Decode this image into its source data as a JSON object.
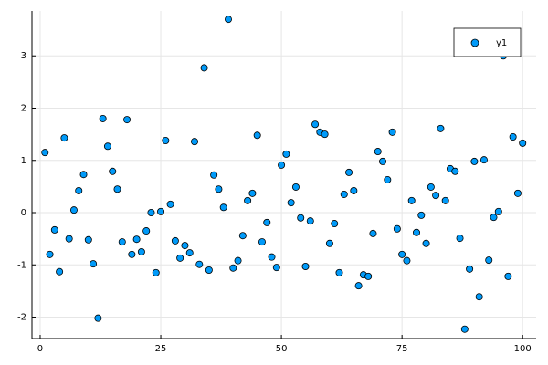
{
  "chart_data": {
    "type": "scatter",
    "x": [
      1,
      2,
      3,
      4,
      5,
      6,
      7,
      8,
      9,
      10,
      11,
      12,
      13,
      14,
      15,
      16,
      17,
      18,
      19,
      20,
      21,
      22,
      23,
      24,
      25,
      26,
      27,
      28,
      29,
      30,
      31,
      32,
      33,
      34,
      35,
      36,
      37,
      38,
      39,
      40,
      41,
      42,
      43,
      44,
      45,
      46,
      47,
      48,
      49,
      50,
      51,
      52,
      53,
      54,
      55,
      56,
      57,
      58,
      59,
      60,
      61,
      62,
      63,
      64,
      65,
      66,
      67,
      68,
      69,
      70,
      71,
      72,
      73,
      74,
      75,
      76,
      77,
      78,
      79,
      80,
      81,
      82,
      83,
      84,
      85,
      86,
      87,
      88,
      89,
      90,
      91,
      92,
      93,
      94,
      95,
      96,
      97,
      98,
      99,
      100
    ],
    "series": [
      {
        "name": "y1",
        "color": "#009af9",
        "values": [
          1.15,
          -0.8,
          -0.33,
          -1.13,
          1.43,
          -0.5,
          0.05,
          0.42,
          0.73,
          -0.52,
          -0.98,
          -2.02,
          1.8,
          1.27,
          0.79,
          0.45,
          -0.56,
          1.78,
          -0.8,
          -0.51,
          -0.75,
          -0.35,
          0.0,
          -1.15,
          0.02,
          1.38,
          0.16,
          -0.54,
          -0.87,
          -0.63,
          -0.77,
          1.36,
          -0.99,
          2.77,
          -1.1,
          0.72,
          0.45,
          0.1,
          3.7,
          -1.06,
          -0.92,
          -0.44,
          0.23,
          0.37,
          1.48,
          -0.56,
          -0.19,
          -0.85,
          -1.05,
          0.91,
          1.12,
          0.19,
          0.49,
          -0.1,
          -1.03,
          -0.16,
          1.69,
          1.54,
          1.5,
          -0.59,
          -0.21,
          -1.15,
          0.35,
          0.77,
          0.42,
          -1.4,
          -1.19,
          -1.22,
          -0.4,
          1.17,
          0.98,
          0.63,
          1.54,
          -0.31,
          -0.8,
          -0.92,
          0.23,
          -0.38,
          -0.05,
          -0.59,
          0.49,
          0.33,
          1.61,
          0.23,
          0.84,
          0.79,
          -0.49,
          -2.23,
          -1.08,
          0.98,
          -1.61,
          1.01,
          -0.91,
          -0.09,
          0.02,
          3.0,
          -1.22,
          1.45,
          0.37,
          1.33
        ]
      }
    ],
    "xlim": [
      -1.7,
      102.8
    ],
    "ylim": [
      -2.41,
      3.86
    ],
    "xticks": [
      0,
      25,
      50,
      75,
      100
    ],
    "yticks": [
      -2,
      -1,
      0,
      1,
      2,
      3
    ],
    "grid": true,
    "legend": "top-right"
  }
}
